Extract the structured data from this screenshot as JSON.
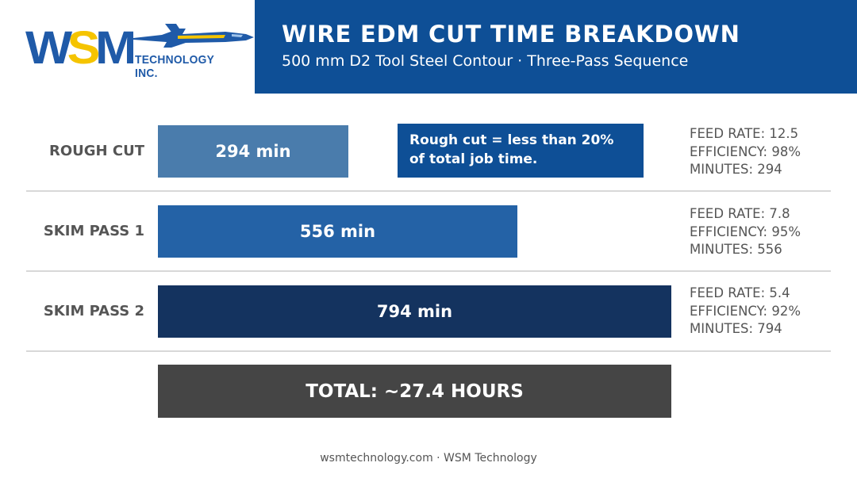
{
  "logo": {
    "letter_w": "W",
    "letter_s": "S",
    "letter_m": "M",
    "sub": "TECHNOLOGY INC.",
    "icon": "jet-icon"
  },
  "header": {
    "title": "WIRE EDM CUT TIME BREAKDOWN",
    "subtitle": "500 mm D2 Tool Steel Contour · Three-Pass Sequence"
  },
  "chart_data": {
    "type": "bar",
    "orientation": "horizontal",
    "categories": [
      "ROUGH CUT",
      "SKIM PASS 1",
      "SKIM PASS 2"
    ],
    "values": [
      294,
      556,
      794
    ],
    "value_labels": [
      "294 min",
      "556 min",
      "794 min"
    ],
    "unit": "min",
    "stats": [
      {
        "feed": "FEED RATE: 12.5",
        "eff": "EFFICIENCY: 98%",
        "mins": "MINUTES: 294"
      },
      {
        "feed": "FEED RATE: 7.8",
        "eff": "EFFICIENCY: 95%",
        "mins": "MINUTES: 556"
      },
      {
        "feed": "FEED RATE: 5.4",
        "eff": "EFFICIENCY: 92%",
        "mins": "MINUTES: 794"
      }
    ],
    "colors": [
      "#4a7cac",
      "#2462a6",
      "#14335f"
    ],
    "annotation": "Rough cut = less than 20% of total job time.",
    "total": "TOTAL: ~27.4 HOURS"
  },
  "colors": {
    "brand_blue": "#0e4f96",
    "brand_yellow": "#f5c400",
    "total_bar": "#454545",
    "text_gray": "#555555"
  },
  "footer": "wsmtechnology.com · WSM Technology"
}
